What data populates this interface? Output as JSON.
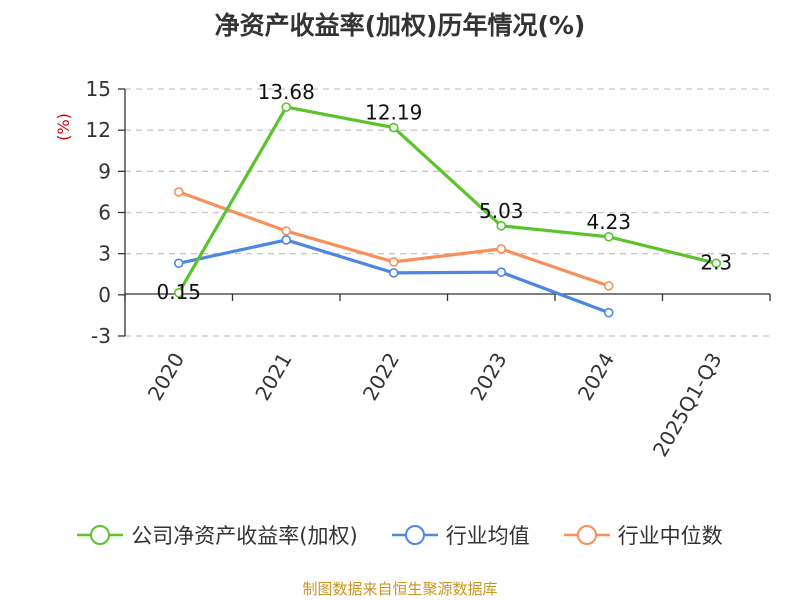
{
  "chart_data": {
    "type": "line",
    "title": "净资产收益率(加权)历年情况(%)",
    "ylabel": "(%)",
    "categories": [
      "2020",
      "2021",
      "2022",
      "2023",
      "2024",
      "2025Q1-Q3"
    ],
    "yticks": [
      "15",
      "12",
      "9",
      "6",
      "3",
      "0",
      "-3"
    ],
    "ylim": [
      -3,
      15
    ],
    "grid": true,
    "legend_position": "bottom",
    "series": [
      {
        "name": "公司净资产收益率(加权)",
        "color": "#5bc42a",
        "values": [
          0.15,
          13.68,
          12.19,
          5.03,
          4.23,
          2.3
        ],
        "labels": [
          "0.15",
          "13.68",
          "12.19",
          "5.03",
          "4.23",
          "2.3"
        ]
      },
      {
        "name": "行业均值",
        "color": "#4f86e3",
        "values": [
          2.3,
          4.0,
          1.6,
          1.65,
          -1.3,
          null
        ]
      },
      {
        "name": "行业中位数",
        "color": "#f7905a",
        "values": [
          7.5,
          4.65,
          2.4,
          3.35,
          0.65,
          null
        ]
      }
    ],
    "ylabel_color": "#cc0000"
  },
  "footer": {
    "source": "制图数据来自恒生聚源数据库"
  }
}
